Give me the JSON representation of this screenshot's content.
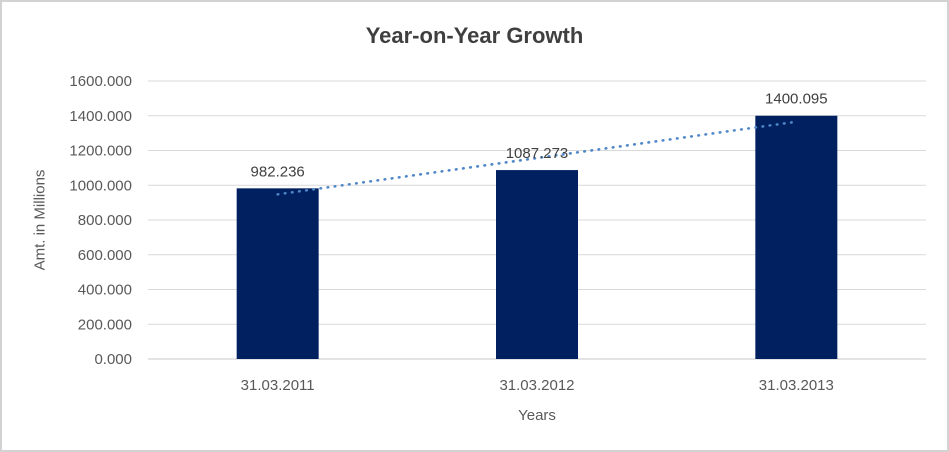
{
  "frame": {
    "background": "#ffffff",
    "border_color": "#d2d2d2"
  },
  "chart_data": {
    "type": "bar",
    "title": "Year-on-Year Growth",
    "categories": [
      "31.03.2011",
      "31.03.2012",
      "31.03.2013"
    ],
    "values": [
      982.236,
      1087.273,
      1400.095
    ],
    "data_labels": [
      "982.236",
      "1087.273",
      "1400.095"
    ],
    "xlabel": "Years",
    "ylabel": "Amt. in Millions",
    "ylim": [
      0,
      1600
    ],
    "ytick_step": 200,
    "ytick_labels": [
      "0.000",
      "200.000",
      "400.000",
      "600.000",
      "800.000",
      "1000.000",
      "1200.000",
      "1400.000",
      "1600.000"
    ],
    "grid": true,
    "legend": "none",
    "trendline": {
      "type": "linear",
      "style": "dotted"
    },
    "colors": {
      "bar": "#002060",
      "trendline": "#4f87c9",
      "gridline": "#d9d9d9",
      "axis_line": "#c8c8c8",
      "title_text": "#3f3f3f",
      "tick_text": "#595959",
      "data_label_text": "#404040"
    }
  }
}
